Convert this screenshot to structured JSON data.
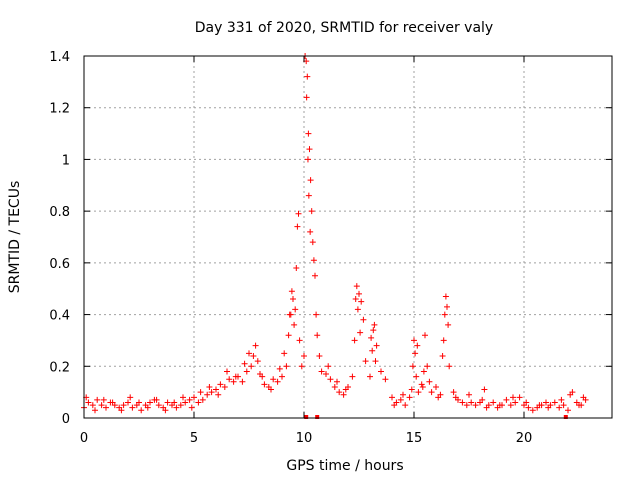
{
  "chart_data": {
    "type": "scatter",
    "title": "Day 331 of 2020, SRMTID for receiver valy",
    "xlabel": "GPS time / hours",
    "ylabel": "SRMTID / TECUs",
    "xlim": [
      0,
      24
    ],
    "ylim": [
      0,
      1.4
    ],
    "x_ticks": [
      0,
      5,
      10,
      15,
      20
    ],
    "x_tick_labels": [
      "0",
      "5",
      "10",
      "15",
      "20"
    ],
    "y_ticks": [
      0,
      0.2,
      0.4,
      0.6,
      0.8,
      1.0,
      1.2,
      1.4
    ],
    "y_tick_labels": [
      "0",
      "0.2",
      "0.4",
      "0.6",
      "0.8",
      "1",
      "1.2",
      "1.4"
    ],
    "grid": true,
    "marker": "plus",
    "color": "#ff0000",
    "series": [
      {
        "name": "SRMTID",
        "x": [
          0.0,
          0.2,
          0.4,
          0.6,
          0.8,
          1.0,
          1.2,
          1.4,
          1.6,
          1.8,
          2.0,
          2.2,
          2.4,
          2.6,
          2.8,
          3.0,
          3.2,
          3.4,
          3.6,
          3.8,
          4.0,
          4.2,
          4.4,
          4.6,
          4.8,
          5.0,
          5.2,
          5.4,
          5.6,
          5.8,
          6.0,
          6.2,
          6.4,
          6.6,
          6.8,
          7.0,
          7.2,
          7.4,
          7.6,
          7.7,
          7.8,
          7.9,
          8.0,
          8.2,
          8.4,
          8.6,
          8.8,
          9.0,
          9.2,
          9.3,
          9.4,
          9.5,
          9.6,
          9.65,
          9.7,
          9.75,
          9.8,
          9.9,
          10.0,
          10.05,
          10.1,
          10.15,
          10.2,
          10.25,
          10.3,
          10.35,
          10.4,
          10.5,
          10.6,
          10.7,
          10.8,
          11.0,
          11.2,
          11.4,
          11.6,
          11.8,
          12.0,
          12.2,
          12.3,
          12.4,
          12.5,
          12.6,
          12.7,
          12.8,
          13.0,
          13.1,
          13.2,
          13.3,
          13.5,
          13.7,
          14.0,
          14.2,
          14.4,
          14.6,
          14.8,
          14.95,
          15.0,
          15.05,
          15.1,
          15.2,
          15.4,
          15.5,
          15.6,
          15.8,
          16.0,
          16.2,
          16.3,
          16.4,
          16.45,
          16.5,
          16.6,
          16.8,
          17.0,
          17.2,
          17.4,
          17.6,
          17.8,
          18.0,
          18.2,
          18.4,
          18.6,
          18.8,
          19.0,
          19.2,
          19.4,
          19.6,
          19.8,
          20.0,
          20.2,
          20.4,
          20.6,
          20.8,
          21.0,
          21.2,
          21.4,
          21.6,
          21.8,
          22.0,
          22.2,
          22.4,
          22.6,
          22.8,
          0.1,
          0.5,
          0.9,
          1.3,
          1.7,
          2.1,
          2.5,
          2.9,
          3.3,
          3.7,
          4.1,
          4.5,
          4.9,
          5.3,
          5.7,
          6.1,
          6.5,
          6.9,
          7.3,
          7.5,
          8.1,
          8.5,
          8.9,
          9.1,
          9.35,
          9.45,
          9.55,
          10.12,
          10.18,
          10.22,
          10.28,
          10.45,
          10.55,
          11.1,
          11.5,
          11.9,
          12.35,
          12.45,
          12.55,
          13.05,
          13.15,
          13.25,
          14.1,
          14.5,
          14.9,
          15.15,
          15.35,
          15.45,
          15.7,
          16.1,
          16.35,
          16.55,
          16.9,
          17.5,
          18.1,
          18.3,
          18.9,
          19.5,
          20.1,
          20.7,
          21.1,
          21.7,
          22.1,
          22.5,
          22.7
        ],
        "y": [
          0.04,
          0.06,
          0.05,
          0.07,
          0.05,
          0.04,
          0.06,
          0.05,
          0.04,
          0.05,
          0.06,
          0.04,
          0.05,
          0.03,
          0.05,
          0.06,
          0.07,
          0.05,
          0.04,
          0.06,
          0.05,
          0.04,
          0.05,
          0.06,
          0.07,
          0.08,
          0.06,
          0.07,
          0.09,
          0.1,
          0.11,
          0.13,
          0.12,
          0.15,
          0.14,
          0.16,
          0.14,
          0.18,
          0.2,
          0.24,
          0.28,
          0.22,
          0.17,
          0.13,
          0.12,
          0.15,
          0.14,
          0.16,
          0.2,
          0.32,
          0.4,
          0.46,
          0.42,
          0.58,
          0.74,
          0.79,
          0.3,
          0.2,
          0.24,
          1.4,
          1.38,
          1.32,
          1.1,
          1.04,
          0.92,
          0.8,
          0.68,
          0.55,
          0.32,
          0.24,
          0.18,
          0.17,
          0.15,
          0.12,
          0.1,
          0.09,
          0.12,
          0.16,
          0.3,
          0.51,
          0.48,
          0.45,
          0.38,
          0.22,
          0.16,
          0.26,
          0.36,
          0.28,
          0.18,
          0.15,
          0.08,
          0.06,
          0.07,
          0.05,
          0.08,
          0.2,
          0.3,
          0.25,
          0.16,
          0.1,
          0.12,
          0.32,
          0.2,
          0.1,
          0.12,
          0.09,
          0.24,
          0.4,
          0.47,
          0.43,
          0.2,
          0.1,
          0.07,
          0.06,
          0.05,
          0.06,
          0.05,
          0.06,
          0.11,
          0.05,
          0.06,
          0.04,
          0.05,
          0.07,
          0.05,
          0.06,
          0.08,
          0.05,
          0.04,
          0.03,
          0.04,
          0.05,
          0.06,
          0.05,
          0.06,
          0.04,
          0.05,
          0.03,
          0.1,
          0.06,
          0.05,
          0.07,
          0.08,
          0.03,
          0.07,
          0.06,
          0.03,
          0.08,
          0.06,
          0.04,
          0.07,
          0.03,
          0.06,
          0.08,
          0.04,
          0.1,
          0.12,
          0.09,
          0.18,
          0.16,
          0.21,
          0.25,
          0.16,
          0.11,
          0.19,
          0.25,
          0.4,
          0.49,
          0.36,
          1.24,
          1.0,
          0.86,
          0.72,
          0.61,
          0.4,
          0.2,
          0.14,
          0.11,
          0.46,
          0.42,
          0.33,
          0.31,
          0.34,
          0.22,
          0.05,
          0.09,
          0.11,
          0.28,
          0.13,
          0.18,
          0.14,
          0.08,
          0.3,
          0.36,
          0.08,
          0.09,
          0.07,
          0.04,
          0.05,
          0.08,
          0.06,
          0.05,
          0.04,
          0.07,
          0.09,
          0.05,
          0.08
        ]
      }
    ],
    "zero_markers_x": [
      10.1,
      10.6,
      21.9
    ]
  }
}
